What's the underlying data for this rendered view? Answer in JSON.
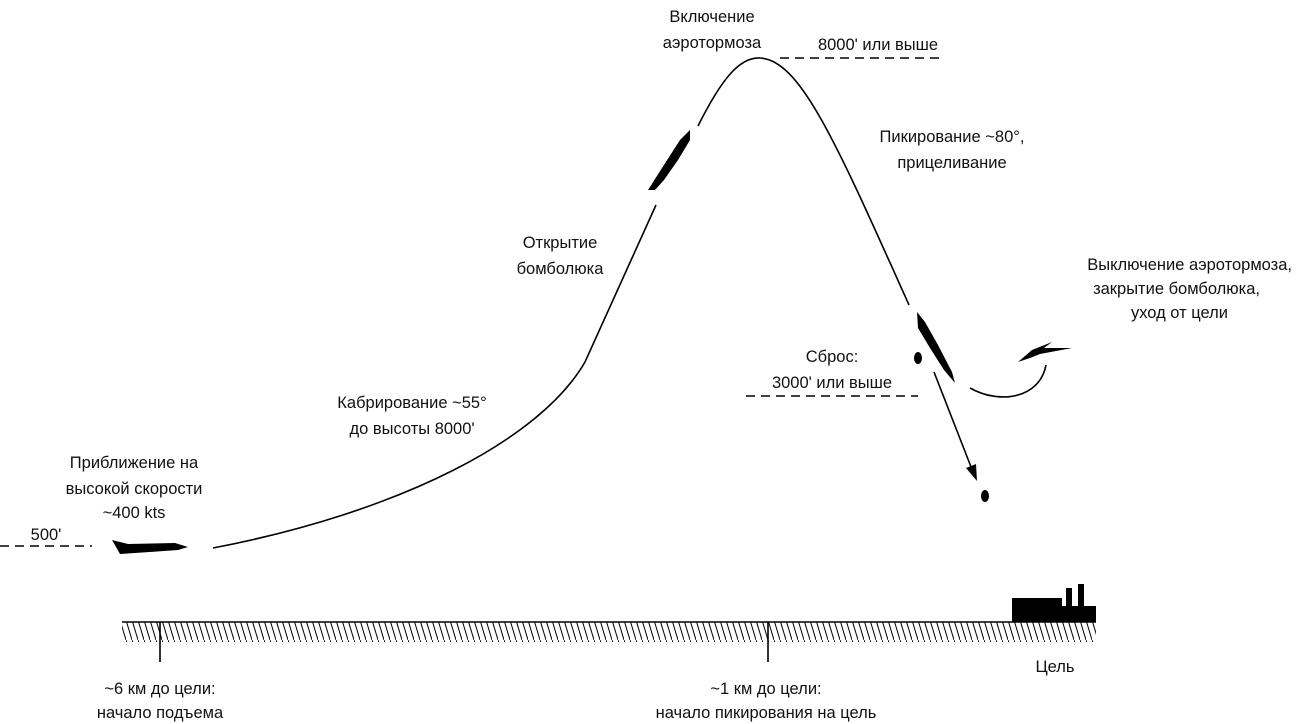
{
  "labels": {
    "airbrake_on": [
      "Включение",
      "аэротормоза"
    ],
    "top_altitude": "8000' или выше",
    "dive": [
      "Пикирование ~80°,",
      "прицеливание"
    ],
    "bay_open": [
      "Открытие",
      "бомболюка"
    ],
    "egress": [
      "Выключение аэротормоза,",
      "закрытие бомболюка,",
      "уход от цели"
    ],
    "release": [
      "Сброс:",
      "3000' или выше"
    ],
    "climb": [
      "Кабрирование ~55°",
      "до высоты 8000'"
    ],
    "approach": [
      "Приближение на",
      "высокой скорости",
      "~400 kts"
    ],
    "low_altitude": "500'",
    "pull_up_point": [
      "~6 км до цели:",
      "начало подъема"
    ],
    "dive_point": [
      "~1 км до цели:",
      "начало пикирования на цель"
    ],
    "target": "Цель"
  }
}
